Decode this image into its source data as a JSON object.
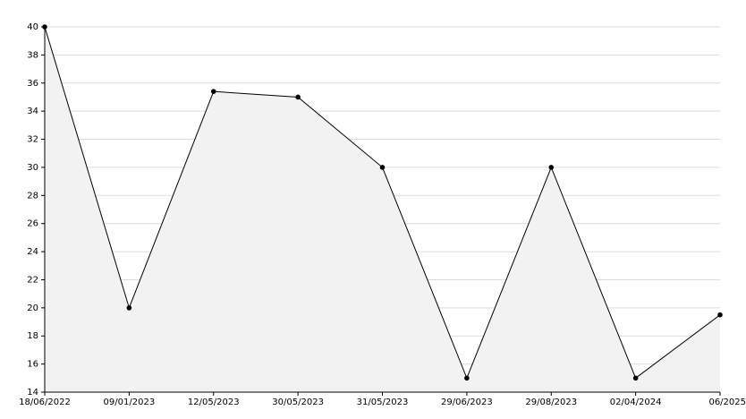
{
  "chart_data": {
    "type": "area",
    "categories": [
      "18/06/2022",
      "09/01/2023",
      "12/05/2023",
      "30/05/2023",
      "31/05/2023",
      "29/06/2023",
      "29/08/2023",
      "02/04/2024",
      "06/2025"
    ],
    "values": [
      40,
      20,
      35.4,
      35,
      30,
      15,
      30,
      15,
      19.5
    ],
    "color": "#000000",
    "fill": "#f2f2f2",
    "ylim": [
      14,
      40
    ],
    "yticks": [
      14,
      16,
      18,
      20,
      22,
      24,
      26,
      28,
      30,
      32,
      34,
      36,
      38,
      40
    ],
    "grid": true
  }
}
